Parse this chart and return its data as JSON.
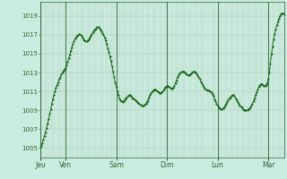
{
  "background_color": "#c8ece0",
  "plot_bg_color": "#d0ede4",
  "line_color": "#1a6b1a",
  "marker_color": "#1a6b1a",
  "ylabel_color": "#2a6b2a",
  "ylim": [
    1004.0,
    1020.5
  ],
  "yticks": [
    1005,
    1007,
    1009,
    1011,
    1013,
    1015,
    1017,
    1019
  ],
  "day_labels": [
    "Jeu",
    "Ven",
    "Sam",
    "Dim",
    "Lun",
    "Mar"
  ],
  "day_positions": [
    0,
    24,
    72,
    120,
    168,
    216
  ],
  "total_points": 240,
  "grid_color": "#a0c8b0",
  "vline_color": "#336633",
  "y": [
    1005.0,
    1005.2,
    1005.5,
    1005.9,
    1006.3,
    1006.7,
    1007.1,
    1007.6,
    1008.1,
    1008.6,
    1009.1,
    1009.7,
    1010.2,
    1010.6,
    1011.0,
    1011.4,
    1011.7,
    1012.0,
    1012.3,
    1012.5,
    1012.8,
    1013.0,
    1013.2,
    1013.3,
    1013.5,
    1013.8,
    1014.1,
    1014.5,
    1014.9,
    1015.3,
    1015.7,
    1016.0,
    1016.3,
    1016.6,
    1016.8,
    1016.9,
    1017.0,
    1017.1,
    1017.0,
    1016.9,
    1016.7,
    1016.5,
    1016.4,
    1016.3,
    1016.3,
    1016.4,
    1016.5,
    1016.7,
    1016.9,
    1017.1,
    1017.3,
    1017.5,
    1017.6,
    1017.7,
    1017.8,
    1017.8,
    1017.7,
    1017.6,
    1017.4,
    1017.2,
    1017.0,
    1016.7,
    1016.4,
    1016.0,
    1015.6,
    1015.2,
    1014.7,
    1014.2,
    1013.7,
    1013.1,
    1012.5,
    1012.0,
    1011.5,
    1011.0,
    1010.6,
    1010.3,
    1010.1,
    1010.0,
    1009.9,
    1010.0,
    1010.1,
    1010.3,
    1010.4,
    1010.5,
    1010.6,
    1010.6,
    1010.5,
    1010.4,
    1010.3,
    1010.2,
    1010.1,
    1010.0,
    1009.9,
    1009.8,
    1009.7,
    1009.6,
    1009.5,
    1009.5,
    1009.5,
    1009.6,
    1009.7,
    1009.9,
    1010.1,
    1010.4,
    1010.6,
    1010.8,
    1011.0,
    1011.1,
    1011.2,
    1011.2,
    1011.1,
    1011.0,
    1010.9,
    1010.8,
    1010.8,
    1010.9,
    1011.0,
    1011.2,
    1011.4,
    1011.5,
    1011.6,
    1011.6,
    1011.5,
    1011.4,
    1011.3,
    1011.3,
    1011.4,
    1011.6,
    1011.9,
    1012.2,
    1012.5,
    1012.7,
    1012.9,
    1013.0,
    1013.1,
    1013.1,
    1013.1,
    1013.0,
    1012.9,
    1012.8,
    1012.7,
    1012.7,
    1012.8,
    1012.9,
    1013.0,
    1013.1,
    1013.1,
    1013.0,
    1012.9,
    1012.7,
    1012.5,
    1012.3,
    1012.1,
    1011.9,
    1011.7,
    1011.5,
    1011.3,
    1011.2,
    1011.1,
    1011.1,
    1011.1,
    1011.0,
    1010.9,
    1010.7,
    1010.5,
    1010.2,
    1010.0,
    1009.7,
    1009.5,
    1009.3,
    1009.2,
    1009.1,
    1009.1,
    1009.2,
    1009.3,
    1009.5,
    1009.7,
    1009.9,
    1010.1,
    1010.3,
    1010.4,
    1010.5,
    1010.6,
    1010.6,
    1010.5,
    1010.3,
    1010.1,
    1009.9,
    1009.7,
    1009.5,
    1009.4,
    1009.3,
    1009.1,
    1009.0,
    1009.0,
    1009.0,
    1009.0,
    1009.1,
    1009.2,
    1009.3,
    1009.5,
    1009.7,
    1010.0,
    1010.3,
    1010.6,
    1010.9,
    1011.2,
    1011.5,
    1011.7,
    1011.8,
    1011.8,
    1011.7,
    1011.6,
    1011.6,
    1011.7,
    1011.9,
    1012.3,
    1013.0,
    1014.0,
    1015.0,
    1015.8,
    1016.5,
    1017.1,
    1017.6,
    1018.0,
    1018.4,
    1018.7,
    1019.0,
    1019.2,
    1019.3,
    1019.3,
    1019.2
  ]
}
